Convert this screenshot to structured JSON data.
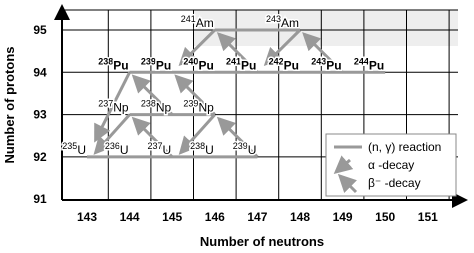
{
  "axes": {
    "x_label": "Number of neutrons",
    "y_label": "Number of protons",
    "x_ticks": [
      "143",
      "144",
      "145",
      "146",
      "147",
      "148",
      "149",
      "150",
      "151"
    ],
    "y_ticks": [
      "95",
      "94",
      "93",
      "92",
      "91"
    ]
  },
  "nuclides": [
    {
      "mass": "241",
      "symbol": "Am"
    },
    {
      "mass": "243",
      "symbol": "Am"
    },
    {
      "mass": "238",
      "symbol": "Pu"
    },
    {
      "mass": "239",
      "symbol": "Pu"
    },
    {
      "mass": "240",
      "symbol": "Pu"
    },
    {
      "mass": "241",
      "symbol": "Pu"
    },
    {
      "mass": "242",
      "symbol": "Pu"
    },
    {
      "mass": "243",
      "symbol": "Pu"
    },
    {
      "mass": "244",
      "symbol": "Pu"
    },
    {
      "mass": "237",
      "symbol": "Np"
    },
    {
      "mass": "238",
      "symbol": "Np"
    },
    {
      "mass": "239",
      "symbol": "Np"
    },
    {
      "mass": "235",
      "symbol": "U"
    },
    {
      "mass": "236",
      "symbol": "U"
    },
    {
      "mass": "237",
      "symbol": "U"
    },
    {
      "mass": "238",
      "symbol": "U"
    },
    {
      "mass": "239",
      "symbol": "U"
    }
  ],
  "legend": [
    "(n, γ) reaction",
    "α -decay",
    "β⁻ -decay"
  ]
}
